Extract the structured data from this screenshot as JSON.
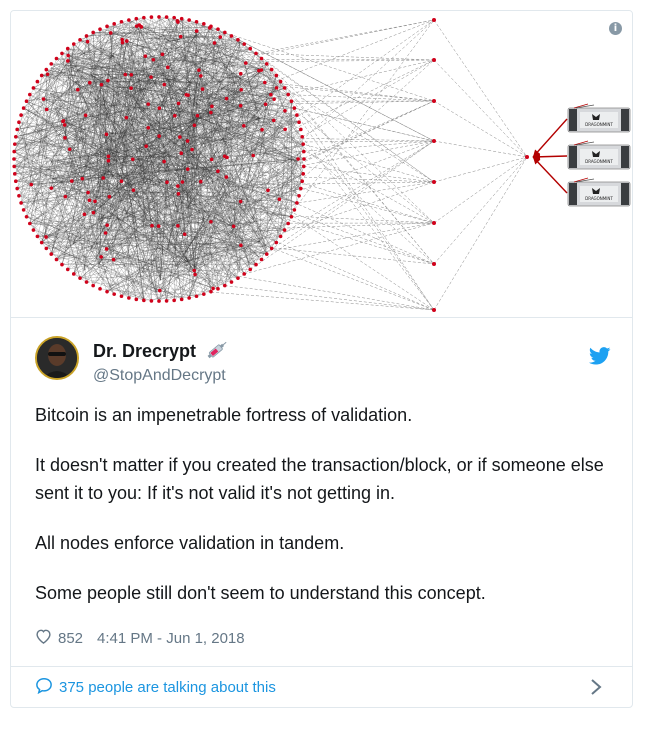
{
  "tweet": {
    "display_name": "Dr. Drecrypt",
    "handle": "@StopAndDecrypt",
    "paragraphs": [
      "Bitcoin is an impenetrable fortress of validation.",
      "It doesn't matter if you created the transaction/block, or if someone else sent it to you: If it's not valid it's not getting in.",
      "All nodes enforce validation in tandem.",
      "Some people still don't seem to understand this concept."
    ],
    "likes": "852",
    "timestamp": "4:41 PM - Jun 1, 2018",
    "talking": "375 people are talking about this"
  },
  "media": {
    "miner_label": "DRAGONMINT"
  },
  "icons": {
    "info": "info-icon",
    "bird": "twitter-bird-icon",
    "heart": "heart-icon",
    "bubble": "reply-bubble-icon",
    "chevron": "chevron-right-icon",
    "syringe": "syringe-emoji-icon"
  },
  "colors": {
    "accent": "#1da1f2",
    "link": "#1b95e0",
    "muted": "#657786",
    "node": "#d0021b",
    "arrow": "#b30000"
  }
}
